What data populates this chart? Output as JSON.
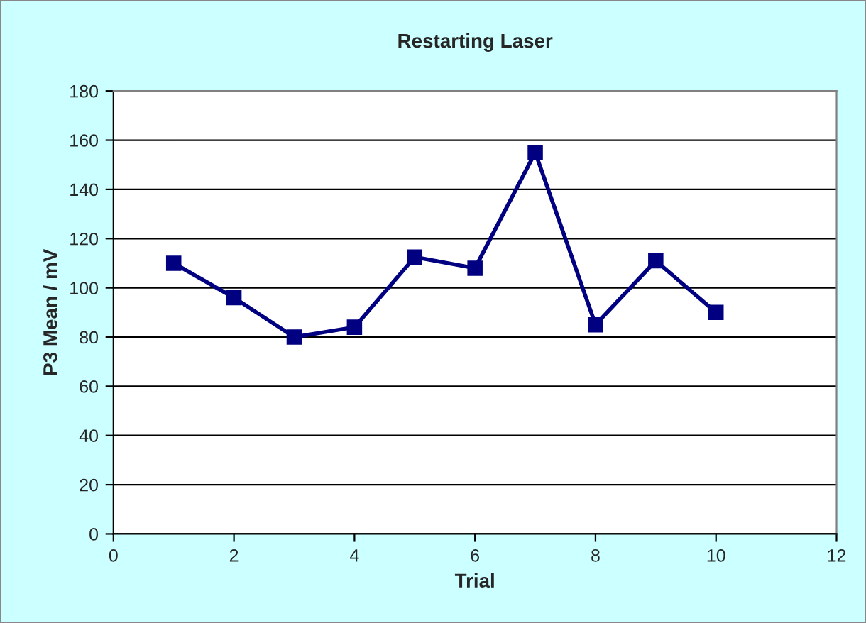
{
  "chart_data": {
    "type": "line",
    "title": "Restarting Laser",
    "xlabel": "Trial",
    "ylabel": "P3 Mean / mV",
    "x": [
      1,
      2,
      3,
      4,
      5,
      6,
      7,
      8,
      9,
      10
    ],
    "series": [
      {
        "color": "#000080",
        "values": [
          110,
          96,
          80,
          84,
          112.5,
          108,
          155,
          85,
          111,
          90
        ]
      }
    ],
    "xlim": [
      0,
      12
    ],
    "xticks": [
      0,
      2,
      4,
      6,
      8,
      10,
      12
    ],
    "ylim": [
      0,
      180
    ],
    "yticks": [
      0,
      20,
      40,
      60,
      80,
      100,
      120,
      140,
      160,
      180
    ],
    "grid": "y",
    "legend": false,
    "marker": "square",
    "line_style": "solid"
  }
}
